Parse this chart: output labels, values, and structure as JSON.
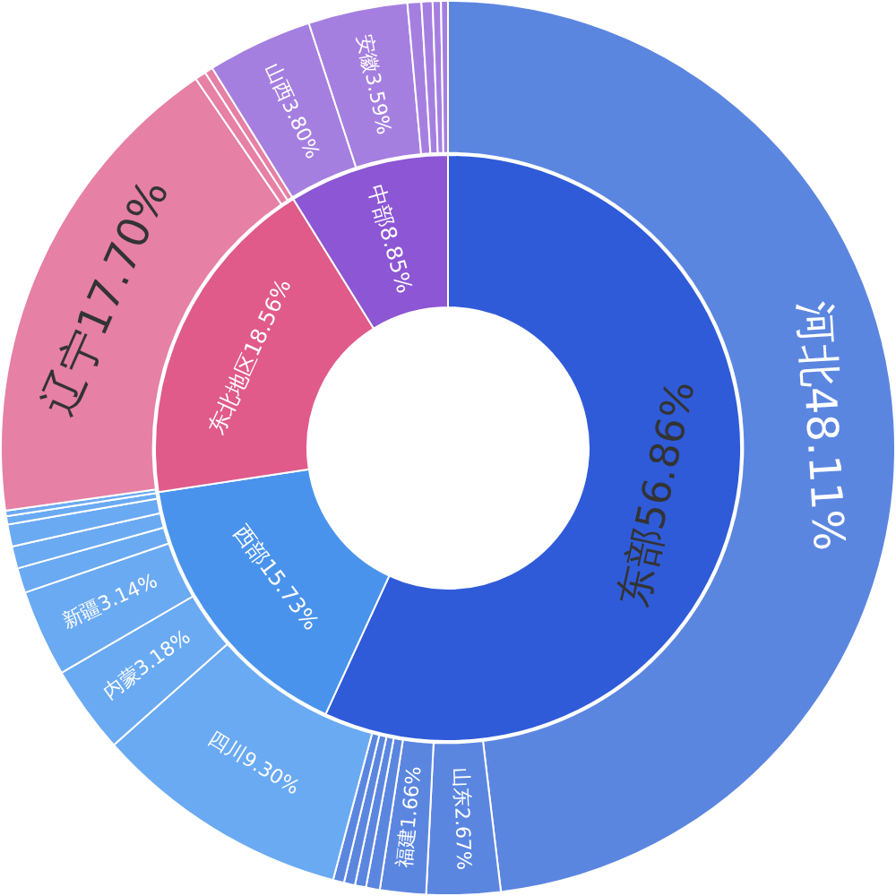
{
  "chart_data": [
    {
      "type": "donut",
      "categories": [
        "东部",
        "西部",
        "东北地区",
        "中部"
      ],
      "values": [
        56.86,
        15.73,
        18.56,
        8.85
      ],
      "value_labels": [
        "56.86%",
        "15.73%",
        "18.56%",
        "8.85%"
      ],
      "colors": [
        "#2f5bd8",
        "#4a93ec",
        "#e05a8a",
        "#8c56d4"
      ],
      "legend": false
    },
    {
      "type": "donut",
      "categories": [
        "河北",
        "山东",
        "福建",
        null,
        null,
        null,
        null,
        "四川",
        "内蒙",
        "新疆",
        null,
        null,
        null,
        null,
        null,
        "辽宁",
        null,
        null,
        "山西",
        "安徽",
        null,
        null,
        null,
        null
      ],
      "values": [
        48.11,
        2.67,
        1.66,
        0.5,
        0.4,
        0.4,
        0.4,
        9.3,
        3.18,
        3.14,
        0.9,
        0.8,
        0.8,
        0.3,
        0.2,
        17.7,
        0.4,
        0.3,
        3.8,
        3.59,
        0.5,
        0.4,
        0.3,
        0.25
      ],
      "value_labels": [
        "48.11%",
        "2.67%",
        "1.66%",
        null,
        null,
        null,
        null,
        "9.30%",
        "3.18%",
        "3.14%",
        null,
        null,
        null,
        null,
        null,
        "17.70%",
        null,
        null,
        "3.80%",
        "3.59%",
        null,
        null,
        null,
        null
      ],
      "colors": [
        "#5b86e0",
        "#5b86e0",
        "#5b86e0",
        "#5b86e0",
        "#5b86e0",
        "#5b86e0",
        "#5b86e0",
        "#6aaaf2",
        "#6aaaf2",
        "#6aaaf2",
        "#6aaaf2",
        "#6aaaf2",
        "#6aaaf2",
        "#6aaaf2",
        "#6aaaf2",
        "#e680a5",
        "#e680a5",
        "#e680a5",
        "#a57fe0",
        "#a57fe0",
        "#a57fe0",
        "#a57fe0",
        "#a57fe0",
        "#a57fe0"
      ],
      "legend": false
    }
  ]
}
